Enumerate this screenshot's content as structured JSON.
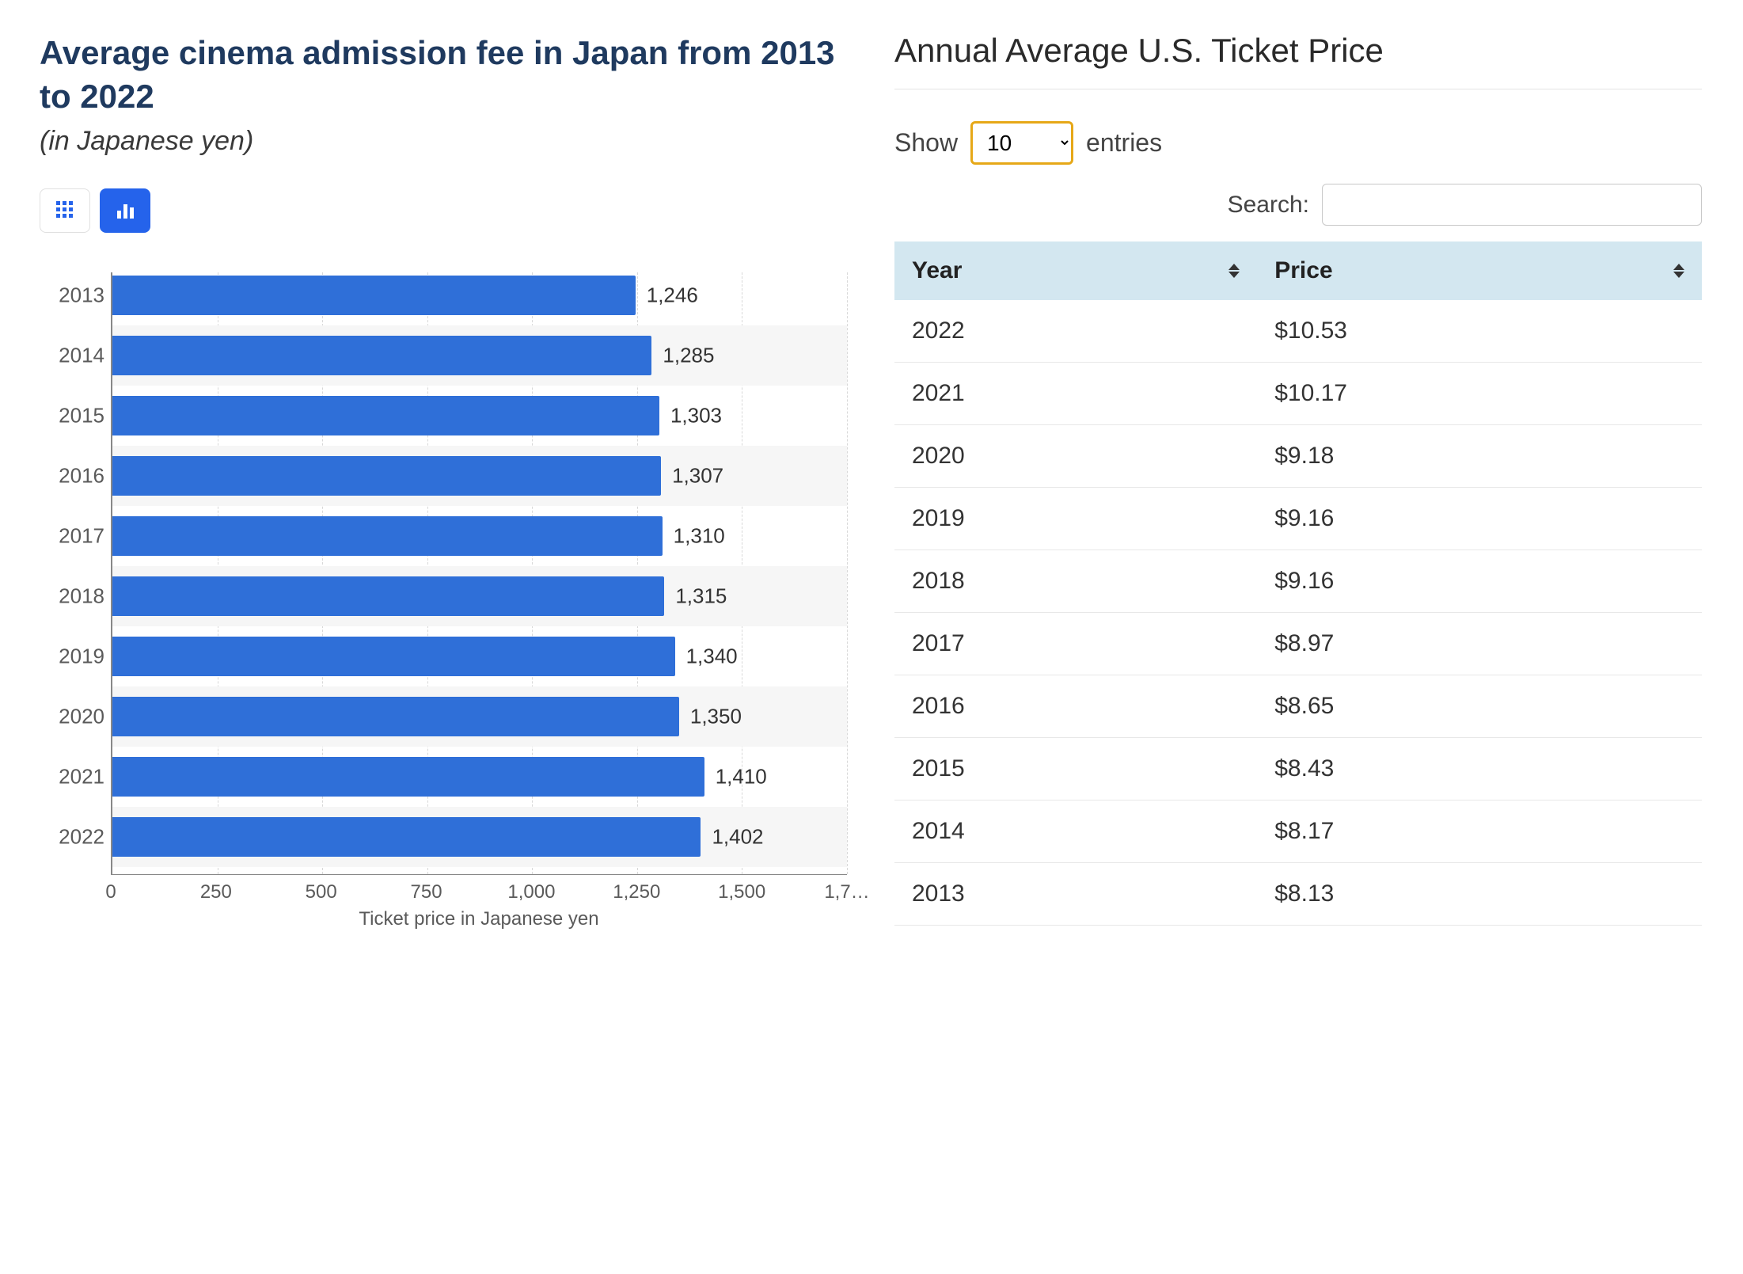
{
  "left": {
    "title": "Average cinema admission fee in Japan from 2013 to 2022",
    "subtitle": "(in Japanese yen)",
    "chart": {
      "type": "bar-horizontal",
      "bar_color": "#2f6fd8",
      "background_color": "#ffffff",
      "grid_color": "#d8d8d8",
      "xlim_max": 1750,
      "x_ticks": [
        {
          "v": 0,
          "label": "0"
        },
        {
          "v": 250,
          "label": "250"
        },
        {
          "v": 500,
          "label": "500"
        },
        {
          "v": 750,
          "label": "750"
        },
        {
          "v": 1000,
          "label": "1,000"
        },
        {
          "v": 1250,
          "label": "1,250"
        },
        {
          "v": 1500,
          "label": "1,500"
        },
        {
          "v": 1750,
          "label": "1,7…"
        }
      ],
      "x_label": "Ticket price in Japanese yen",
      "bars": [
        {
          "year": "2013",
          "value": 1246,
          "label": "1,246"
        },
        {
          "year": "2014",
          "value": 1285,
          "label": "1,285"
        },
        {
          "year": "2015",
          "value": 1303,
          "label": "1,303"
        },
        {
          "year": "2016",
          "value": 1307,
          "label": "1,307"
        },
        {
          "year": "2017",
          "value": 1310,
          "label": "1,310"
        },
        {
          "year": "2018",
          "value": 1315,
          "label": "1,315"
        },
        {
          "year": "2019",
          "value": 1340,
          "label": "1,340"
        },
        {
          "year": "2020",
          "value": 1350,
          "label": "1,350"
        },
        {
          "year": "2021",
          "value": 1410,
          "label": "1,410"
        },
        {
          "year": "2022",
          "value": 1402,
          "label": "1,402"
        }
      ]
    }
  },
  "right": {
    "title": "Annual Average U.S. Ticket Price",
    "show_label": "Show",
    "entries_value": "10",
    "entries_label": "entries",
    "search_label": "Search:",
    "search_value": "",
    "columns": [
      "Year",
      "Price"
    ],
    "header_bg": "#d3e7f0",
    "rows": [
      {
        "year": "2022",
        "price": "$10.53"
      },
      {
        "year": "2021",
        "price": "$10.17"
      },
      {
        "year": "2020",
        "price": "$9.18"
      },
      {
        "year": "2019",
        "price": "$9.16"
      },
      {
        "year": "2018",
        "price": "$9.16"
      },
      {
        "year": "2017",
        "price": "$8.97"
      },
      {
        "year": "2016",
        "price": "$8.65"
      },
      {
        "year": "2015",
        "price": "$8.43"
      },
      {
        "year": "2014",
        "price": "$8.17"
      },
      {
        "year": "2013",
        "price": "$8.13"
      }
    ]
  }
}
